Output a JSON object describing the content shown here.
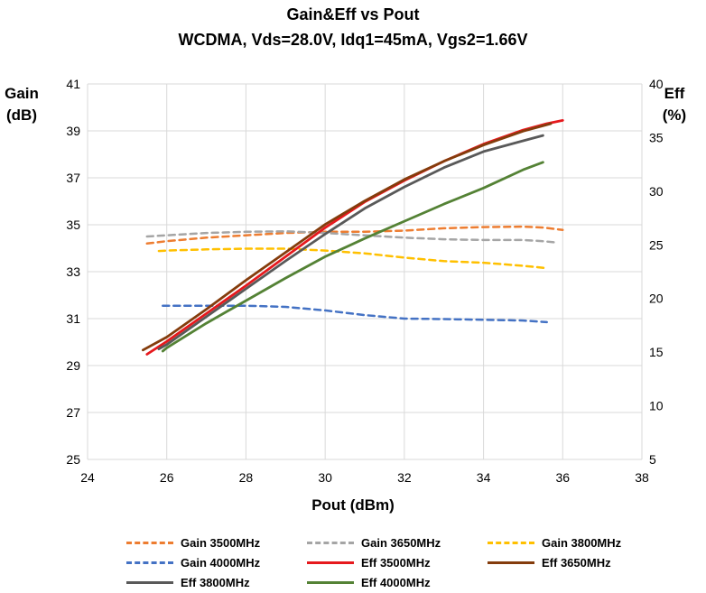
{
  "chart_data": {
    "type": "line",
    "title": "Gain&Eff vs Pout",
    "subtitle": "WCDMA, Vds=28.0V, Idq1=45mA, Vgs2=1.66V",
    "xlabel": "Pout (dBm)",
    "ylabel_left": "Gain (dB)",
    "ylabel_left_lines": [
      "Gain",
      "(dB)"
    ],
    "ylabel_right": "Eff (%)",
    "ylabel_right_lines": [
      "Eff",
      "(%)"
    ],
    "xlim": [
      24,
      38
    ],
    "xticks": [
      24,
      26,
      28,
      30,
      32,
      34,
      36,
      38
    ],
    "ylim_left": [
      25,
      41
    ],
    "yticks_left": [
      25,
      27,
      29,
      31,
      33,
      35,
      37,
      39,
      41
    ],
    "ylim_right": [
      5,
      40
    ],
    "yticks_right": [
      5,
      10,
      15,
      20,
      25,
      30,
      35,
      40
    ],
    "grid": true,
    "legend_position": "bottom",
    "series": [
      {
        "name": "Gain 3500MHz",
        "axis": "left",
        "style": "dashed",
        "color": "#ED7D31",
        "x": [
          25.5,
          26,
          27,
          28,
          29,
          30,
          31,
          32,
          33,
          34,
          35,
          35.5,
          36
        ],
        "y": [
          34.2,
          34.3,
          34.45,
          34.55,
          34.65,
          34.7,
          34.7,
          34.75,
          34.85,
          34.9,
          34.92,
          34.88,
          34.78
        ]
      },
      {
        "name": "Gain 3650MHz",
        "axis": "left",
        "style": "dashed",
        "color": "#A5A5A5",
        "x": [
          25.5,
          26,
          27,
          28,
          29,
          30,
          31,
          32,
          33,
          34,
          35,
          35.5,
          35.8
        ],
        "y": [
          34.5,
          34.55,
          34.65,
          34.7,
          34.72,
          34.65,
          34.55,
          34.45,
          34.38,
          34.35,
          34.35,
          34.3,
          34.25
        ]
      },
      {
        "name": "Gain 3800MHz",
        "axis": "left",
        "style": "dashed",
        "color": "#FFC000",
        "x": [
          25.8,
          26,
          27,
          28,
          29,
          30,
          31,
          32,
          33,
          34,
          35,
          35.6
        ],
        "y": [
          33.88,
          33.9,
          33.95,
          33.98,
          33.98,
          33.9,
          33.78,
          33.6,
          33.45,
          33.38,
          33.25,
          33.15
        ]
      },
      {
        "name": "Gain 4000MHz",
        "axis": "left",
        "style": "dashed",
        "color": "#4472C4",
        "x": [
          25.9,
          26.5,
          27,
          28,
          29,
          30,
          31,
          32,
          33,
          34,
          35,
          35.6
        ],
        "y": [
          31.55,
          31.55,
          31.55,
          31.55,
          31.5,
          31.35,
          31.15,
          31.0,
          30.98,
          30.95,
          30.92,
          30.85
        ]
      },
      {
        "name": "Eff 3500MHz",
        "axis": "right",
        "style": "solid",
        "color": "#E6191D",
        "x": [
          25.5,
          26,
          27,
          28,
          29,
          30,
          31,
          32,
          33,
          34,
          35,
          35.6,
          36
        ],
        "y": [
          14.8,
          16.0,
          18.6,
          21.2,
          23.9,
          26.6,
          29.0,
          31.0,
          32.8,
          34.4,
          35.7,
          36.3,
          36.6
        ]
      },
      {
        "name": "Eff 3650MHz",
        "axis": "right",
        "style": "solid",
        "color": "#843C0C",
        "x": [
          25.4,
          26,
          27,
          28,
          29,
          30,
          31,
          32,
          33,
          34,
          35,
          35.7
        ],
        "y": [
          15.2,
          16.4,
          19.0,
          21.7,
          24.3,
          26.9,
          29.1,
          31.1,
          32.8,
          34.3,
          35.6,
          36.3
        ]
      },
      {
        "name": "Eff 3800MHz",
        "axis": "right",
        "style": "solid",
        "color": "#595959",
        "x": [
          25.8,
          26,
          27,
          28,
          29,
          30,
          31,
          32,
          33,
          34,
          35,
          35.5
        ],
        "y": [
          15.3,
          15.7,
          18.3,
          20.9,
          23.5,
          26.0,
          28.4,
          30.4,
          32.2,
          33.7,
          34.7,
          35.2
        ]
      },
      {
        "name": "Eff 4000MHz",
        "axis": "right",
        "style": "solid",
        "color": "#548235",
        "x": [
          25.9,
          26,
          27,
          28,
          29,
          30,
          31,
          32,
          33,
          34,
          35,
          35.5
        ],
        "y": [
          15.1,
          15.4,
          17.7,
          19.8,
          21.9,
          23.9,
          25.6,
          27.2,
          28.8,
          30.3,
          32.0,
          32.7
        ]
      }
    ]
  }
}
